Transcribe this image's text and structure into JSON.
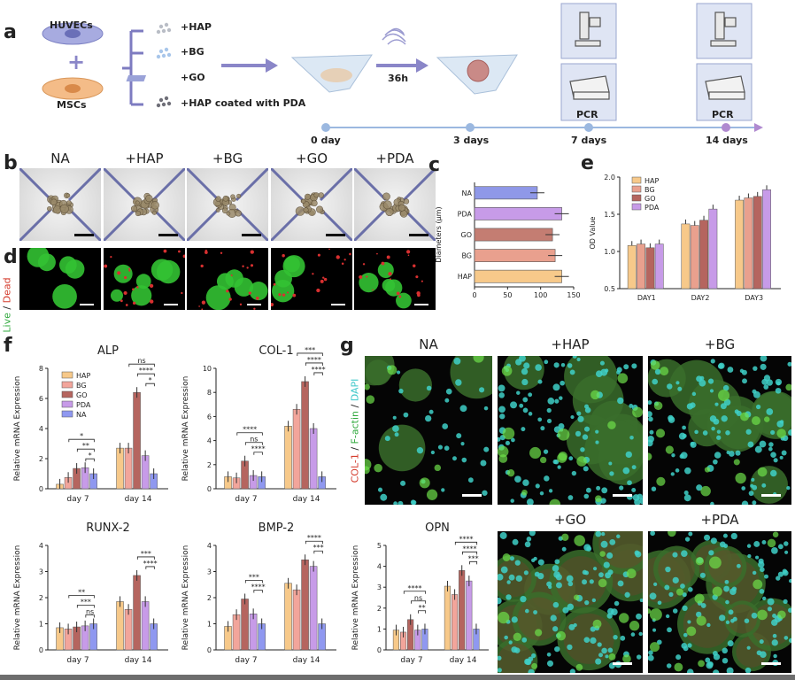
{
  "panel_labels": {
    "a": "a",
    "b": "b",
    "c": "c",
    "d": "d",
    "e": "e",
    "f": "f",
    "g": "g"
  },
  "schematic": {
    "cells": [
      "HUVECs",
      "MSCs"
    ],
    "plus": "+",
    "materials": [
      "+HAP",
      "+BG",
      "+GO",
      "+HAP coated with PDA"
    ],
    "duration": "36h",
    "timeline": [
      "0 day",
      "3 days",
      "7 days",
      "14 days"
    ],
    "assay": "PCR",
    "colors": {
      "huvec": "#9aa0d8",
      "msc": "#f2b27c",
      "arrow": "#8a86c8",
      "timeline": "#9bb8e0"
    }
  },
  "panel_b": {
    "groups": [
      "NA",
      "+HAP",
      "+BG",
      "+GO",
      "+PDA"
    ]
  },
  "panel_d": {
    "stain_live": "Live",
    "stain_sep": " / ",
    "stain_dead": "Dead"
  },
  "panel_g": {
    "groups": [
      "NA",
      "+HAP",
      "+BG",
      "+GO",
      "+PDA"
    ],
    "stain_col": "COL-1",
    "stain_f": "F-actin",
    "stain_dapi": "DAPI",
    "sep": " / "
  },
  "chart_data": [
    {
      "id": "c",
      "type": "bar",
      "orientation": "horizontal",
      "categories": [
        "NA",
        "PDA",
        "GO",
        "BG",
        "HAP"
      ],
      "values": [
        95,
        132,
        118,
        122,
        132
      ],
      "xlabel": "",
      "ylabel": "Diameters (μm)",
      "xlim": [
        0,
        150
      ],
      "xticks": [
        0,
        50,
        100,
        150
      ],
      "colors": [
        "#8f98e8",
        "#c79be8",
        "#c47d72",
        "#e9a08e",
        "#f7c98a"
      ]
    },
    {
      "id": "e",
      "type": "bar",
      "categories": [
        "DAY1",
        "DAY2",
        "DAY3"
      ],
      "series": [
        {
          "name": "HAP",
          "values": [
            1.08,
            1.37,
            1.69
          ]
        },
        {
          "name": "BG",
          "values": [
            1.1,
            1.35,
            1.72
          ]
        },
        {
          "name": "GO",
          "values": [
            1.05,
            1.42,
            1.74
          ]
        },
        {
          "name": "PDA",
          "values": [
            1.1,
            1.57,
            1.83
          ]
        }
      ],
      "ylabel": "OD Value",
      "ylim": [
        0.5,
        2.0
      ],
      "yticks": [
        "0.5",
        "1.0",
        "1.5",
        "2.0"
      ],
      "legend": "top-left",
      "colors": [
        "#f7c98a",
        "#e9a08e",
        "#b5655f",
        "#c79be8"
      ]
    },
    {
      "id": "f-alp",
      "type": "bar",
      "title": "ALP",
      "ylabel": "Relative mRNA Expression",
      "categories": [
        "day 7",
        "day 14"
      ],
      "series": [
        {
          "name": "HAP",
          "values": [
            0.3,
            2.7
          ]
        },
        {
          "name": "BG",
          "values": [
            0.75,
            2.7
          ]
        },
        {
          "name": "GO",
          "values": [
            1.35,
            6.4
          ]
        },
        {
          "name": "PDA",
          "values": [
            1.4,
            2.2
          ]
        },
        {
          "name": "NA",
          "values": [
            1.0,
            1.0
          ]
        }
      ],
      "ylim": [
        0,
        8
      ],
      "yticks": [
        "0",
        "2",
        "4",
        "6",
        "8"
      ],
      "legend": "top-left",
      "significance": [
        "*",
        "**",
        "*",
        "*",
        "****",
        "ns"
      ]
    },
    {
      "id": "f-col1",
      "type": "bar",
      "title": "COL-1",
      "ylabel": "Relative mRNA Expression",
      "categories": [
        "day 7",
        "day 14"
      ],
      "series": [
        {
          "name": "HAP",
          "values": [
            1.0,
            5.2
          ]
        },
        {
          "name": "BG",
          "values": [
            0.9,
            6.6
          ]
        },
        {
          "name": "GO",
          "values": [
            2.3,
            8.9
          ]
        },
        {
          "name": "PDA",
          "values": [
            1.1,
            5.0
          ]
        },
        {
          "name": "NA",
          "values": [
            1.0,
            1.0
          ]
        }
      ],
      "ylim": [
        0,
        10
      ],
      "yticks": [
        "0",
        "2",
        "4",
        "6",
        "8",
        "10"
      ],
      "significance": [
        "****",
        "ns",
        "****",
        "****",
        "****",
        "***"
      ]
    },
    {
      "id": "f-runx2",
      "type": "bar",
      "title": "RUNX-2",
      "ylabel": "Relative mRNA Expression",
      "categories": [
        "day 7",
        "day 14"
      ],
      "series": [
        {
          "name": "HAP",
          "values": [
            0.85,
            1.85
          ]
        },
        {
          "name": "BG",
          "values": [
            0.8,
            1.55
          ]
        },
        {
          "name": "GO",
          "values": [
            0.88,
            2.85
          ]
        },
        {
          "name": "PDA",
          "values": [
            0.92,
            1.85
          ]
        },
        {
          "name": "NA",
          "values": [
            1.0,
            1.0
          ]
        }
      ],
      "ylim": [
        0,
        4
      ],
      "yticks": [
        "0",
        "1",
        "2",
        "3",
        "4"
      ],
      "significance": [
        "ns",
        "***",
        "**",
        "****",
        "***"
      ]
    },
    {
      "id": "f-bmp2",
      "type": "bar",
      "title": "BMP-2",
      "ylabel": "Relative mRNA Expression",
      "categories": [
        "day 7",
        "day 14"
      ],
      "series": [
        {
          "name": "HAP",
          "values": [
            0.9,
            2.55
          ]
        },
        {
          "name": "BG",
          "values": [
            1.35,
            2.3
          ]
        },
        {
          "name": "GO",
          "values": [
            1.95,
            3.45
          ]
        },
        {
          "name": "PDA",
          "values": [
            1.38,
            3.2
          ]
        },
        {
          "name": "NA",
          "values": [
            1.0,
            1.0
          ]
        }
      ],
      "ylim": [
        0,
        4
      ],
      "yticks": [
        "0",
        "1",
        "2",
        "3",
        "4"
      ],
      "significance": [
        "****",
        "***",
        "***",
        "****"
      ]
    },
    {
      "id": "f-opn",
      "type": "bar",
      "title": "OPN",
      "ylabel": "Relative mRNA Expression",
      "categories": [
        "day 7",
        "day 14"
      ],
      "series": [
        {
          "name": "HAP",
          "values": [
            0.95,
            3.05
          ]
        },
        {
          "name": "BG",
          "values": [
            0.85,
            2.65
          ]
        },
        {
          "name": "GO",
          "values": [
            1.45,
            3.8
          ]
        },
        {
          "name": "PDA",
          "values": [
            0.95,
            3.3
          ]
        },
        {
          "name": "NA",
          "values": [
            1.0,
            1.0
          ]
        }
      ],
      "ylim": [
        0,
        5
      ],
      "yticks": [
        "0",
        "1",
        "2",
        "3",
        "4",
        "5"
      ],
      "significance": [
        "**",
        "ns",
        "****",
        "***",
        "****",
        "****"
      ]
    }
  ]
}
